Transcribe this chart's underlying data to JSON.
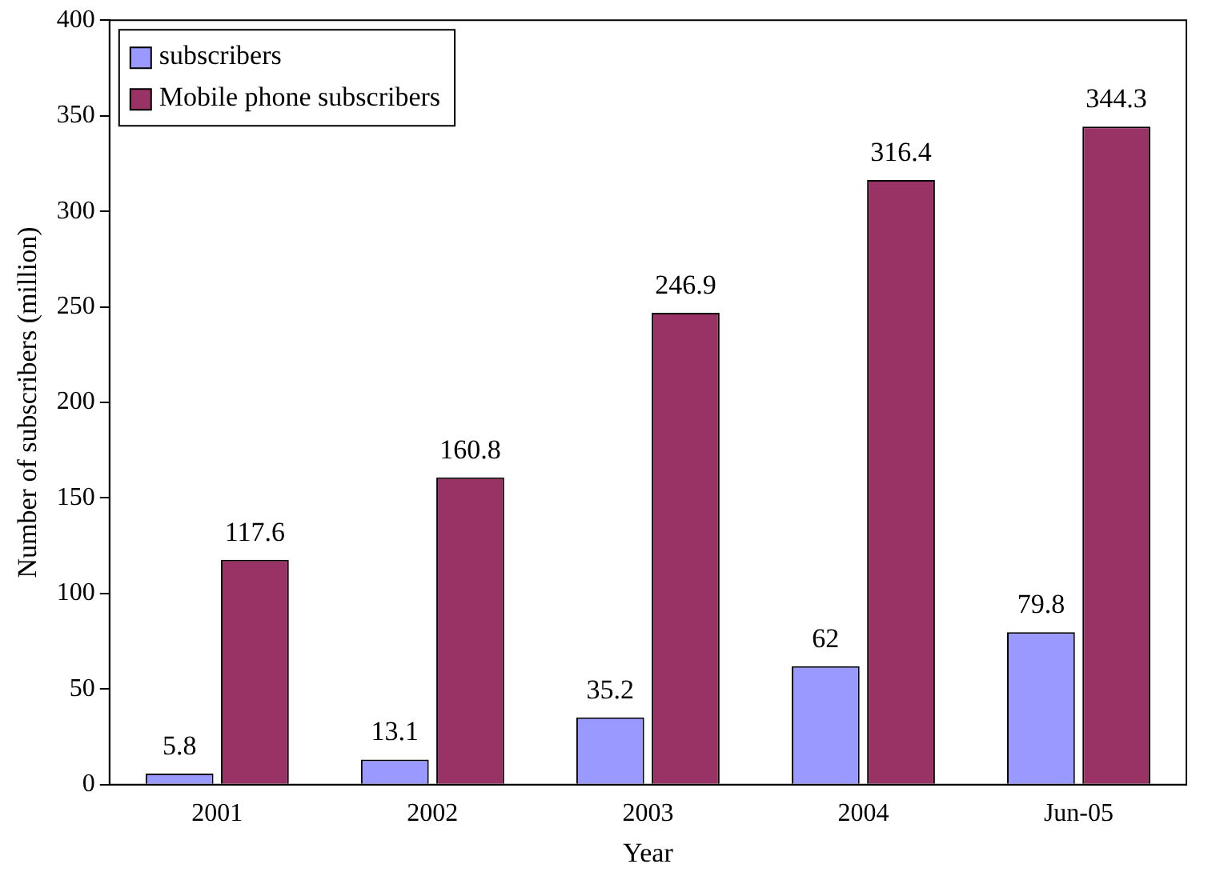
{
  "chart_data": {
    "type": "bar",
    "xlabel": "Year",
    "ylabel": "Number of subscribers (million)",
    "categories": [
      "2001",
      "2002",
      "2003",
      "2004",
      "Jun-05"
    ],
    "series": [
      {
        "name": "subscribers",
        "color": "#9999ff",
        "values": [
          5.8,
          13.1,
          35.2,
          62,
          79.8
        ]
      },
      {
        "name": "Mobile phone subscribers",
        "color": "#993366",
        "values": [
          117.6,
          160.8,
          246.9,
          316.4,
          344.3
        ]
      }
    ],
    "ylim": [
      0,
      400
    ],
    "yticks": [
      0,
      50,
      100,
      150,
      200,
      250,
      300,
      350,
      400
    ],
    "grid": false,
    "legend": "top left",
    "data_labels": true
  }
}
